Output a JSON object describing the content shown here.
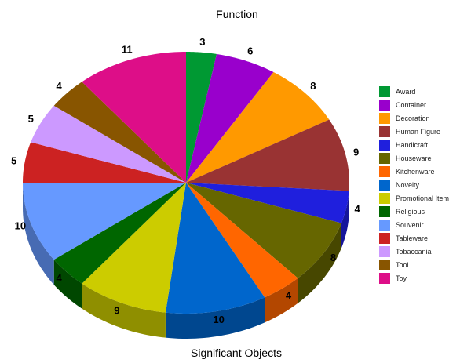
{
  "chart_data": {
    "type": "pie",
    "style": "3d",
    "title": "Function",
    "xlabel": "Significant Objects",
    "legend_position": "right",
    "categories": [
      "Award",
      "Container",
      "Decoration",
      "Human Figure",
      "Handicraft",
      "Houseware",
      "Kitchenware",
      "Novelty",
      "Promotional Item",
      "Religious",
      "Souvenir",
      "Tableware",
      "Tobaccania",
      "Tool",
      "Toy"
    ],
    "values": [
      3,
      6,
      8,
      9,
      4,
      8,
      4,
      10,
      9,
      4,
      10,
      5,
      5,
      4,
      11
    ],
    "colors": [
      "#009933",
      "#9900cc",
      "#ff9900",
      "#993333",
      "#1f1fdd",
      "#666600",
      "#ff6600",
      "#0066cc",
      "#cccc00",
      "#006600",
      "#6699ff",
      "#cc2222",
      "#cc99ff",
      "#885500",
      "#dd0e88"
    ]
  }
}
